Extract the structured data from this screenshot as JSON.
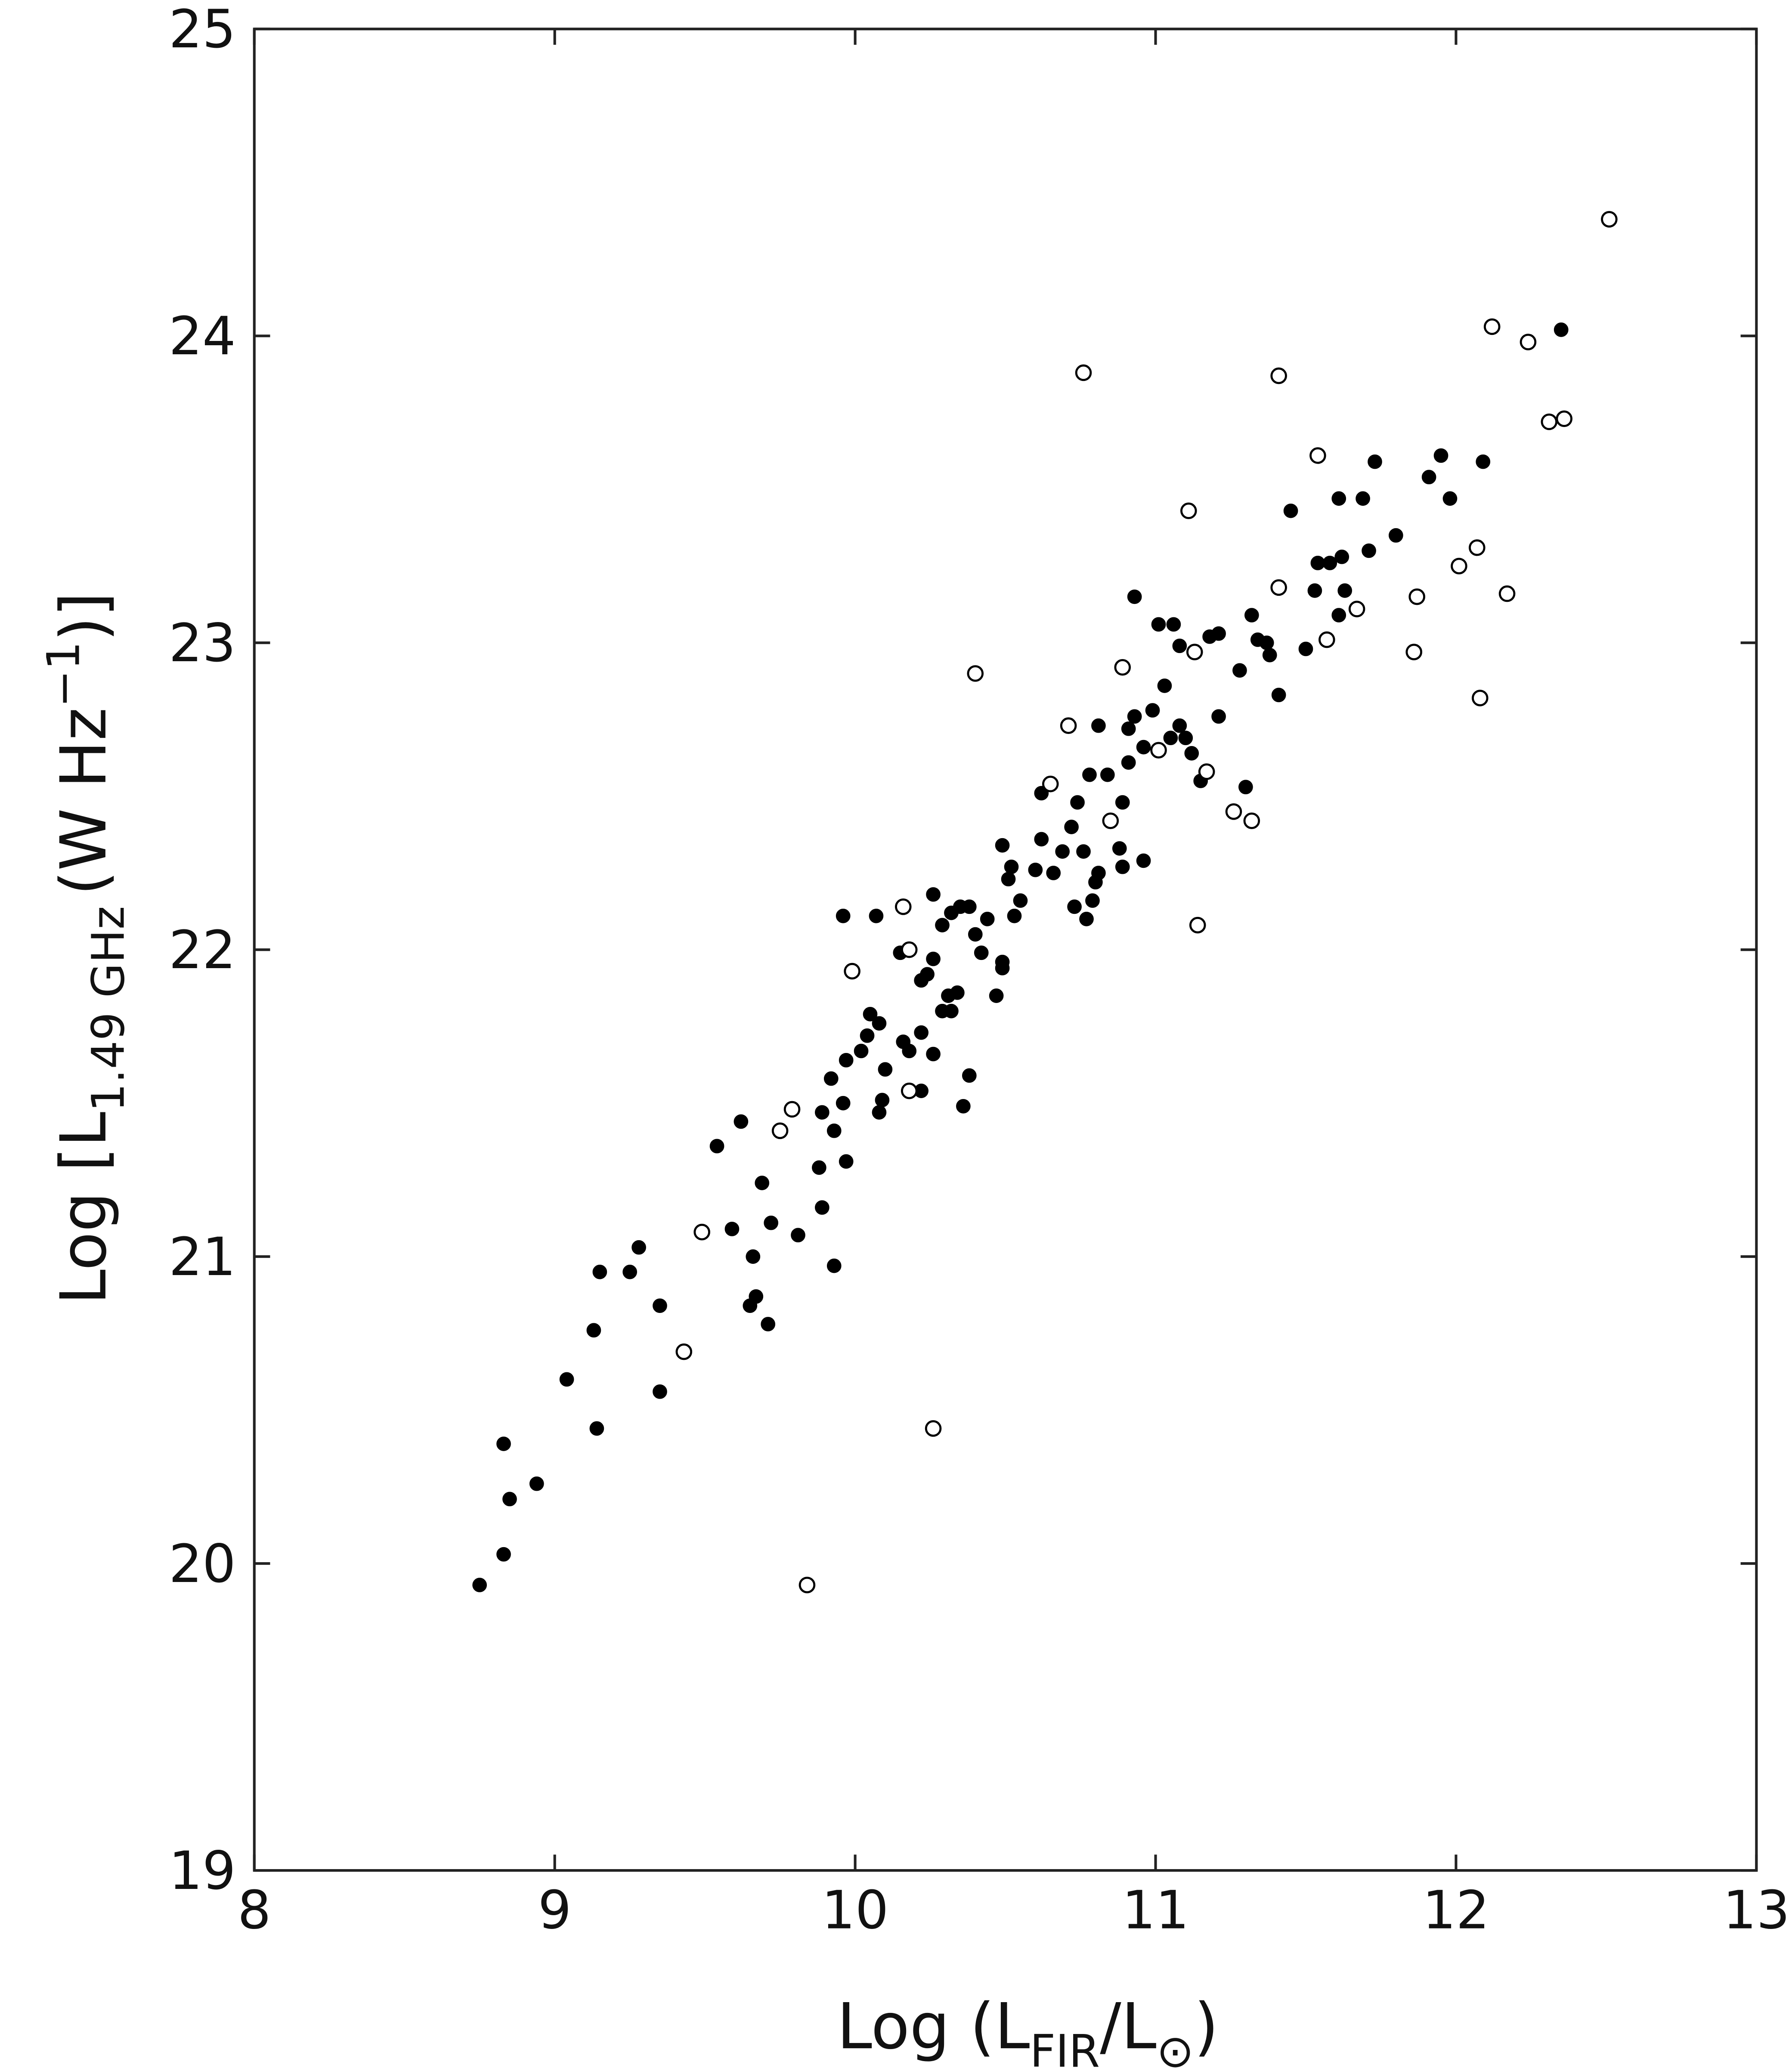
{
  "chart_data": {
    "type": "scatter",
    "x_label": {
      "main": "Log (L",
      "sub": "FIR",
      "slash": "/L",
      "sun": "⊙",
      "close": ")"
    },
    "y_label": {
      "main": "Log [L",
      "sub": "1.49 GHz",
      "unit": "(W Hz",
      "sup": "−1",
      "close": ")]"
    },
    "xlim": [
      8,
      13
    ],
    "xticks": [
      8,
      9,
      10,
      11,
      12,
      13
    ],
    "ylim": [
      19,
      25
    ],
    "yticks": [
      19,
      20,
      21,
      22,
      23,
      24,
      25
    ],
    "grid": false,
    "series": [
      {
        "marker": "filled",
        "color": "#000000",
        "x": [
          8.75,
          8.83,
          8.85,
          8.94,
          8.83,
          9.14,
          9.04,
          9.35,
          9.13,
          9.35,
          9.15,
          9.25,
          9.28,
          9.54,
          9.62,
          9.59,
          9.69,
          9.72,
          9.66,
          9.65,
          9.67,
          9.71,
          9.81,
          9.93,
          9.89,
          9.88,
          9.97,
          9.93,
          9.89,
          9.96,
          9.92,
          9.97,
          10.02,
          10.04,
          10.08,
          10.05,
          10.08,
          10.09,
          10.1,
          10.16,
          10.18,
          10.22,
          10.26,
          10.29,
          10.31,
          10.34,
          10.32,
          10.38,
          10.36,
          10.07,
          10.15,
          10.22,
          10.24,
          10.26,
          10.29,
          10.26,
          10.32,
          10.35,
          10.4,
          10.42,
          10.44,
          10.47,
          10.49,
          10.53,
          10.51,
          10.55,
          10.6,
          10.66,
          10.69,
          10.62,
          10.49,
          10.52,
          10.62,
          10.72,
          10.76,
          10.8,
          10.73,
          10.77,
          10.79,
          10.81,
          10.74,
          10.78,
          10.84,
          10.81,
          10.89,
          10.91,
          10.88,
          10.89,
          10.96,
          10.91,
          10.93,
          10.96,
          10.99,
          11.03,
          11.05,
          11.08,
          11.1,
          11.12,
          11.06,
          11.01,
          11.08,
          11.21,
          11.15,
          11.3,
          11.18,
          11.21,
          11.28,
          11.32,
          11.34,
          11.37,
          11.38,
          11.41,
          11.45,
          11.5,
          11.53,
          11.54,
          11.58,
          11.61,
          11.62,
          11.63,
          11.61,
          11.69,
          11.71,
          11.73,
          11.8,
          11.91,
          11.95,
          11.98,
          12.09,
          12.35,
          10.93,
          9.96,
          10.22,
          10.49,
          10.38
        ],
        "y": [
          19.93,
          20.03,
          20.21,
          20.26,
          20.39,
          20.44,
          20.6,
          20.56,
          20.76,
          20.84,
          20.95,
          20.95,
          21.03,
          21.36,
          21.44,
          21.09,
          21.24,
          21.11,
          21.0,
          20.84,
          20.87,
          20.78,
          21.07,
          20.97,
          21.16,
          21.29,
          21.31,
          21.41,
          21.47,
          21.5,
          21.58,
          21.64,
          21.67,
          21.72,
          21.76,
          21.79,
          21.47,
          21.51,
          21.61,
          21.7,
          21.67,
          21.73,
          21.66,
          21.8,
          21.85,
          21.86,
          21.8,
          21.59,
          21.49,
          22.11,
          21.99,
          21.9,
          21.92,
          21.97,
          22.08,
          22.18,
          22.12,
          22.14,
          22.05,
          21.99,
          22.1,
          21.85,
          21.96,
          22.11,
          22.23,
          22.16,
          22.26,
          22.25,
          22.32,
          22.36,
          22.34,
          22.27,
          22.51,
          22.4,
          22.32,
          22.22,
          22.14,
          22.1,
          22.16,
          22.25,
          22.48,
          22.57,
          22.57,
          22.73,
          22.48,
          22.61,
          22.33,
          22.27,
          22.29,
          22.72,
          22.76,
          22.66,
          22.78,
          22.86,
          22.69,
          22.73,
          22.69,
          22.64,
          23.06,
          23.06,
          22.99,
          22.76,
          22.55,
          22.53,
          23.02,
          23.03,
          22.91,
          23.09,
          23.01,
          23.0,
          22.96,
          22.83,
          23.43,
          22.98,
          23.17,
          23.26,
          23.26,
          23.47,
          23.28,
          23.17,
          23.09,
          23.47,
          23.3,
          23.59,
          23.35,
          23.54,
          23.61,
          23.47,
          23.59,
          24.02,
          23.15,
          22.11,
          21.54,
          21.94,
          22.14
        ]
      },
      {
        "marker": "open",
        "color": "#000000",
        "x": [
          12.51,
          12.12,
          12.24,
          12.31,
          12.36,
          10.76,
          11.41,
          11.54,
          11.11,
          11.41,
          12.07,
          12.01,
          12.17,
          11.87,
          11.67,
          11.57,
          11.86,
          12.08,
          11.13,
          10.89,
          10.4,
          10.71,
          11.01,
          11.17,
          10.65,
          10.85,
          11.26,
          11.32,
          11.14,
          10.16,
          10.18,
          9.99,
          10.18,
          9.79,
          9.75,
          9.49,
          9.43,
          10.26,
          9.84
        ],
        "y": [
          24.38,
          24.03,
          23.98,
          23.72,
          23.73,
          23.88,
          23.87,
          23.61,
          23.43,
          23.18,
          23.31,
          23.25,
          23.16,
          23.15,
          23.11,
          23.01,
          22.97,
          22.82,
          22.97,
          22.92,
          22.9,
          22.73,
          22.65,
          22.58,
          22.54,
          22.42,
          22.45,
          22.42,
          22.08,
          22.14,
          22.0,
          21.93,
          21.54,
          21.48,
          21.41,
          21.08,
          20.69,
          20.44,
          19.93
        ]
      }
    ]
  }
}
